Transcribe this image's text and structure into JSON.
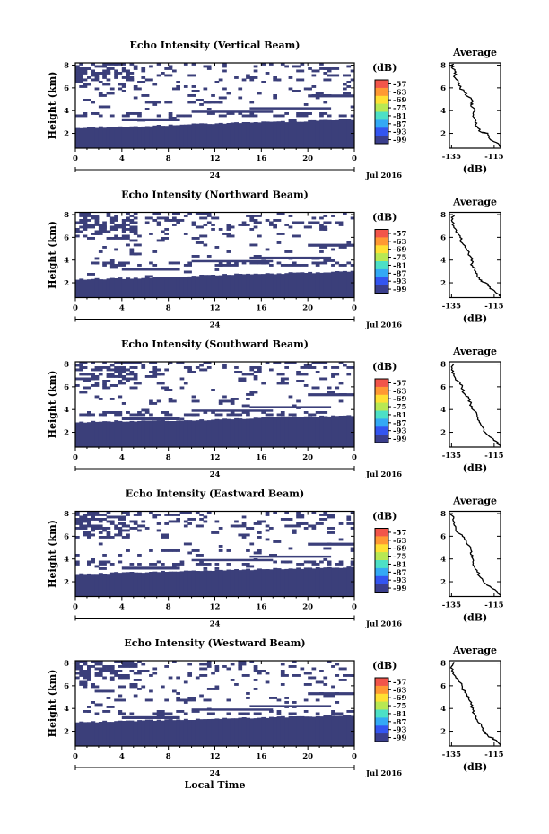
{
  "colorbar": {
    "unit_label": "(dB)",
    "tick_labels": [
      "-57",
      "-63",
      "-69",
      "-75",
      "-81",
      "-87",
      "-93",
      "-99"
    ],
    "colors": [
      "#f2554a",
      "#ff9933",
      "#ffe033",
      "#b8e853",
      "#4de0c6",
      "#33a9f5",
      "#3355f0",
      "#3a3e8c"
    ]
  },
  "background_color": "#3b3f7a",
  "panels": [
    {
      "title": "Echo Intensity (Vertical Beam)",
      "ylabel": "Height (km)",
      "yticks": [
        "2",
        "4",
        "6",
        "8"
      ],
      "xticks": [
        "0",
        "4",
        "8",
        "12",
        "16",
        "20",
        "0"
      ],
      "date_tick": "24",
      "date_label": "Jul 2016"
    },
    {
      "title": "Echo Intensity (Northward Beam)",
      "ylabel": "Height (km)",
      "yticks": [
        "2",
        "4",
        "6",
        "8"
      ],
      "xticks": [
        "0",
        "4",
        "8",
        "12",
        "16",
        "20",
        "0"
      ],
      "date_tick": "24",
      "date_label": "Jul 2016"
    },
    {
      "title": "Echo Intensity (Southward Beam)",
      "ylabel": "Height (km)",
      "yticks": [
        "2",
        "4",
        "6",
        "8"
      ],
      "xticks": [
        "0",
        "4",
        "8",
        "12",
        "16",
        "20",
        "0"
      ],
      "date_tick": "24",
      "date_label": "Jul 2016"
    },
    {
      "title": "Echo Intensity (Eastward Beam)",
      "ylabel": "Height (km)",
      "yticks": [
        "2",
        "4",
        "6",
        "8"
      ],
      "xticks": [
        "0",
        "4",
        "8",
        "12",
        "16",
        "20",
        "0"
      ],
      "date_tick": "24",
      "date_label": "Jul 2016"
    },
    {
      "title": "Echo Intensity (Westward Beam)",
      "ylabel": "Height (km)",
      "yticks": [
        "2",
        "4",
        "6",
        "8"
      ],
      "xticks": [
        "0",
        "4",
        "8",
        "12",
        "16",
        "20",
        "0"
      ],
      "date_tick": "24",
      "date_label": "Jul 2016"
    }
  ],
  "xlabel": "Local Time",
  "chart_data": [
    {
      "type": "heatmap",
      "title": "Echo Intensity (Vertical Beam)",
      "xlabel": "Local Time",
      "ylabel": "Height (km)",
      "xlim": [
        0,
        24
      ],
      "ylim": [
        0.7,
        8.2
      ],
      "clim": [
        -99,
        -57
      ],
      "echo_top_km": [
        [
          0,
          2.5
        ],
        [
          4,
          2.6
        ],
        [
          8,
          2.7
        ],
        [
          12,
          2.9
        ],
        [
          16,
          3.0
        ],
        [
          20,
          3.1
        ],
        [
          24,
          3.2
        ]
      ]
    },
    {
      "type": "heatmap",
      "title": "Echo Intensity (Northward Beam)",
      "xlabel": "Local Time",
      "ylabel": "Height (km)",
      "xlim": [
        0,
        24
      ],
      "ylim": [
        0.7,
        8.2
      ],
      "clim": [
        -99,
        -57
      ],
      "echo_top_km": [
        [
          0,
          2.3
        ],
        [
          4,
          2.4
        ],
        [
          8,
          2.5
        ],
        [
          12,
          2.7
        ],
        [
          16,
          2.8
        ],
        [
          20,
          2.9
        ],
        [
          24,
          3.0
        ]
      ]
    },
    {
      "type": "heatmap",
      "title": "Echo Intensity (Southward Beam)",
      "xlabel": "Local Time",
      "ylabel": "Height (km)",
      "xlim": [
        0,
        24
      ],
      "ylim": [
        0.7,
        8.2
      ],
      "clim": [
        -99,
        -57
      ],
      "echo_top_km": [
        [
          0,
          2.9
        ],
        [
          4,
          3.0
        ],
        [
          8,
          3.0
        ],
        [
          12,
          3.1
        ],
        [
          16,
          3.3
        ],
        [
          20,
          3.4
        ],
        [
          24,
          3.5
        ]
      ]
    },
    {
      "type": "heatmap",
      "title": "Echo Intensity (Eastward Beam)",
      "xlabel": "Local Time",
      "ylabel": "Height (km)",
      "xlim": [
        0,
        24
      ],
      "ylim": [
        0.7,
        8.2
      ],
      "clim": [
        -99,
        -57
      ],
      "echo_top_km": [
        [
          0,
          2.7
        ],
        [
          4,
          2.8
        ],
        [
          8,
          2.9
        ],
        [
          12,
          3.0
        ],
        [
          16,
          3.1
        ],
        [
          20,
          3.2
        ],
        [
          24,
          3.3
        ]
      ]
    },
    {
      "type": "heatmap",
      "title": "Echo Intensity (Westward Beam)",
      "xlabel": "Local Time",
      "ylabel": "Height (km)",
      "xlim": [
        0,
        24
      ],
      "ylim": [
        0.7,
        8.2
      ],
      "clim": [
        -99,
        -57
      ],
      "echo_top_km": [
        [
          0,
          2.8
        ],
        [
          4,
          2.9
        ],
        [
          8,
          3.0
        ],
        [
          12,
          3.1
        ],
        [
          16,
          3.2
        ],
        [
          20,
          3.3
        ],
        [
          24,
          3.4
        ]
      ]
    },
    {
      "type": "line",
      "title": "Average",
      "xlabel": "(dB)",
      "xlim": [
        -136,
        -112
      ],
      "ylim": [
        0.7,
        8.2
      ],
      "xticks": [
        -135,
        -115
      ],
      "yticks": [
        2,
        4,
        6,
        8
      ],
      "series": [
        {
          "points": [
            [
              -112,
              0.8
            ],
            [
              -114,
              1.2
            ],
            [
              -117,
              1.5
            ],
            [
              -118,
              2.0
            ],
            [
              -121,
              2.1
            ],
            [
              -123,
              2.6
            ],
            [
              -124,
              3.0
            ],
            [
              -125,
              3.5
            ],
            [
              -124,
              4.0
            ],
            [
              -126,
              4.5
            ],
            [
              -125,
              4.8
            ],
            [
              -127,
              5.2
            ],
            [
              -129,
              5.6
            ],
            [
              -131,
              6.0
            ],
            [
              -132,
              6.5
            ],
            [
              -134,
              7.0
            ],
            [
              -133,
              7.4
            ],
            [
              -135,
              7.8
            ],
            [
              -134,
              8.1
            ]
          ]
        },
        {
          "points": [
            [
              -112,
              0.8
            ],
            [
              -114,
              1.1
            ],
            [
              -117,
              1.5
            ],
            [
              -119,
              2.0
            ],
            [
              -122,
              2.3
            ],
            [
              -123,
              2.8
            ],
            [
              -124,
              3.2
            ],
            [
              -126,
              3.6
            ],
            [
              -125,
              4.1
            ],
            [
              -127,
              4.6
            ],
            [
              -128,
              5.0
            ],
            [
              -130,
              5.5
            ],
            [
              -131,
              6.0
            ],
            [
              -133,
              6.5
            ],
            [
              -134,
              7.0
            ],
            [
              -135,
              7.5
            ],
            [
              -134,
              8.0
            ]
          ]
        },
        {
          "points": [
            [
              -112,
              0.8
            ],
            [
              -114,
              1.2
            ],
            [
              -117,
              1.6
            ],
            [
              -120,
              2.1
            ],
            [
              -121,
              2.6
            ],
            [
              -122,
              3.0
            ],
            [
              -123,
              3.5
            ],
            [
              -125,
              4.0
            ],
            [
              -126,
              4.5
            ],
            [
              -127,
              5.0
            ],
            [
              -129,
              5.4
            ],
            [
              -130,
              6.0
            ],
            [
              -132,
              6.5
            ],
            [
              -134,
              7.0
            ],
            [
              -135,
              7.5
            ],
            [
              -134,
              8.0
            ]
          ]
        },
        {
          "points": [
            [
              -112,
              0.8
            ],
            [
              -114,
              1.2
            ],
            [
              -117,
              1.6
            ],
            [
              -120,
              2.0
            ],
            [
              -122,
              2.5
            ],
            [
              -123,
              3.0
            ],
            [
              -125,
              3.5
            ],
            [
              -125,
              4.0
            ],
            [
              -126,
              4.4
            ],
            [
              -126,
              4.9
            ],
            [
              -128,
              5.4
            ],
            [
              -129,
              5.8
            ],
            [
              -131,
              6.2
            ],
            [
              -133,
              6.6
            ],
            [
              -134,
              7.1
            ],
            [
              -134,
              7.6
            ],
            [
              -135,
              8.0
            ]
          ]
        },
        {
          "points": [
            [
              -112,
              0.8
            ],
            [
              -114,
              1.2
            ],
            [
              -118,
              1.6
            ],
            [
              -120,
              2.0
            ],
            [
              -121,
              2.5
            ],
            [
              -123,
              3.0
            ],
            [
              -124,
              3.4
            ],
            [
              -125,
              3.9
            ],
            [
              -126,
              4.4
            ],
            [
              -127,
              4.9
            ],
            [
              -128,
              5.3
            ],
            [
              -130,
              5.8
            ],
            [
              -131,
              6.3
            ],
            [
              -133,
              6.7
            ],
            [
              -134,
              7.2
            ],
            [
              -135,
              7.7
            ],
            [
              -134,
              8.1
            ]
          ]
        }
      ]
    }
  ],
  "avg": {
    "title": "Average",
    "xticks": [
      "-135",
      "-115"
    ],
    "yticks": [
      "2",
      "4",
      "6",
      "8"
    ],
    "xlabel": "(dB)"
  }
}
